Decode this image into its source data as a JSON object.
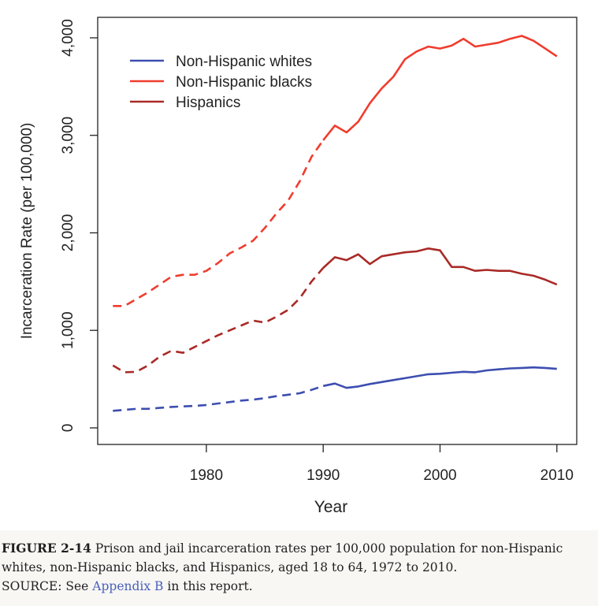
{
  "chart_data": {
    "type": "line",
    "title": "",
    "xlabel": "Year",
    "ylabel": "Incarceration Rate (per 100,000)",
    "xlim": [
      1970.7,
      2011.7
    ],
    "ylim": [
      -170,
      4210
    ],
    "x_ticks": [
      1980,
      1990,
      2000,
      2010
    ],
    "x_tick_labels": [
      "1980",
      "1990",
      "2000",
      "2010"
    ],
    "y_ticks": [
      0,
      1000,
      2000,
      3000,
      4000
    ],
    "y_tick_labels": [
      "0",
      "1,000",
      "2,000",
      "3,000",
      "4,000"
    ],
    "grid": false,
    "legend_position": "top-left",
    "line_style_note": "dashed segments 1972-1989, solid segments 1990-2010",
    "series": [
      {
        "name": "Non-Hispanic whites",
        "color": "#3d4eb0",
        "dashed_x": [
          1972,
          1973,
          1974,
          1975,
          1976,
          1977,
          1978,
          1979,
          1980,
          1981,
          1982,
          1983,
          1984,
          1985,
          1986,
          1987,
          1988,
          1989,
          1990
        ],
        "dashed_y": [
          175,
          185,
          195,
          195,
          205,
          215,
          220,
          225,
          235,
          250,
          265,
          280,
          290,
          305,
          325,
          340,
          355,
          390,
          430
        ],
        "solid_x": [
          1990,
          1991,
          1992,
          1993,
          1994,
          1995,
          1996,
          1997,
          1998,
          1999,
          2000,
          2001,
          2002,
          2003,
          2004,
          2005,
          2006,
          2007,
          2008,
          2009,
          2010
        ],
        "solid_y": [
          430,
          455,
          410,
          425,
          450,
          470,
          490,
          510,
          530,
          550,
          555,
          565,
          575,
          570,
          590,
          600,
          610,
          615,
          620,
          615,
          605
        ]
      },
      {
        "name": "Non-Hispanic blacks",
        "color": "#f03c2e",
        "dashed_x": [
          1972,
          1973,
          1974,
          1975,
          1976,
          1977,
          1978,
          1979,
          1980,
          1981,
          1982,
          1983,
          1984,
          1985,
          1986,
          1987,
          1988,
          1989,
          1990
        ],
        "dashed_y": [
          1250,
          1250,
          1320,
          1390,
          1470,
          1550,
          1570,
          1570,
          1610,
          1690,
          1790,
          1850,
          1920,
          2050,
          2200,
          2330,
          2530,
          2780,
          2950
        ],
        "solid_x": [
          1990,
          1991,
          1992,
          1993,
          1994,
          1995,
          1996,
          1997,
          1998,
          1999,
          2000,
          2001,
          2002,
          2003,
          2004,
          2005,
          2006,
          2007,
          2008,
          2009,
          2010
        ],
        "solid_y": [
          2950,
          3100,
          3030,
          3140,
          3330,
          3480,
          3600,
          3780,
          3860,
          3910,
          3890,
          3920,
          3990,
          3910,
          3930,
          3950,
          3990,
          4020,
          3970,
          3890,
          3810
        ]
      },
      {
        "name": "Hispanics",
        "color": "#a92a26",
        "dashed_x": [
          1972,
          1973,
          1974,
          1975,
          1976,
          1977,
          1978,
          1979,
          1980,
          1981,
          1982,
          1983,
          1984,
          1985,
          1986,
          1987,
          1988,
          1989,
          1990
        ],
        "dashed_y": [
          640,
          570,
          575,
          640,
          730,
          790,
          770,
          830,
          890,
          950,
          1000,
          1050,
          1100,
          1080,
          1140,
          1210,
          1330,
          1500,
          1640
        ],
        "solid_x": [
          1990,
          1991,
          1992,
          1993,
          1994,
          1995,
          1996,
          1997,
          1998,
          1999,
          2000,
          2001,
          2002,
          2003,
          2004,
          2005,
          2006,
          2007,
          2008,
          2009,
          2010
        ],
        "solid_y": [
          1640,
          1750,
          1720,
          1780,
          1680,
          1760,
          1780,
          1800,
          1810,
          1840,
          1820,
          1650,
          1650,
          1610,
          1620,
          1610,
          1610,
          1580,
          1560,
          1520,
          1470
        ]
      }
    ]
  },
  "caption": {
    "figure_label": "FIGURE 2-14",
    "text": "Prison and jail incarceration rates per 100,000 population for non-Hispanic whites, non-Hispanic blacks, and Hispanics, aged 18 to 64, 1972 to 2010.",
    "source_prefix": "SOURCE: See",
    "source_link": "Appendix B",
    "source_suffix": "in this report."
  }
}
